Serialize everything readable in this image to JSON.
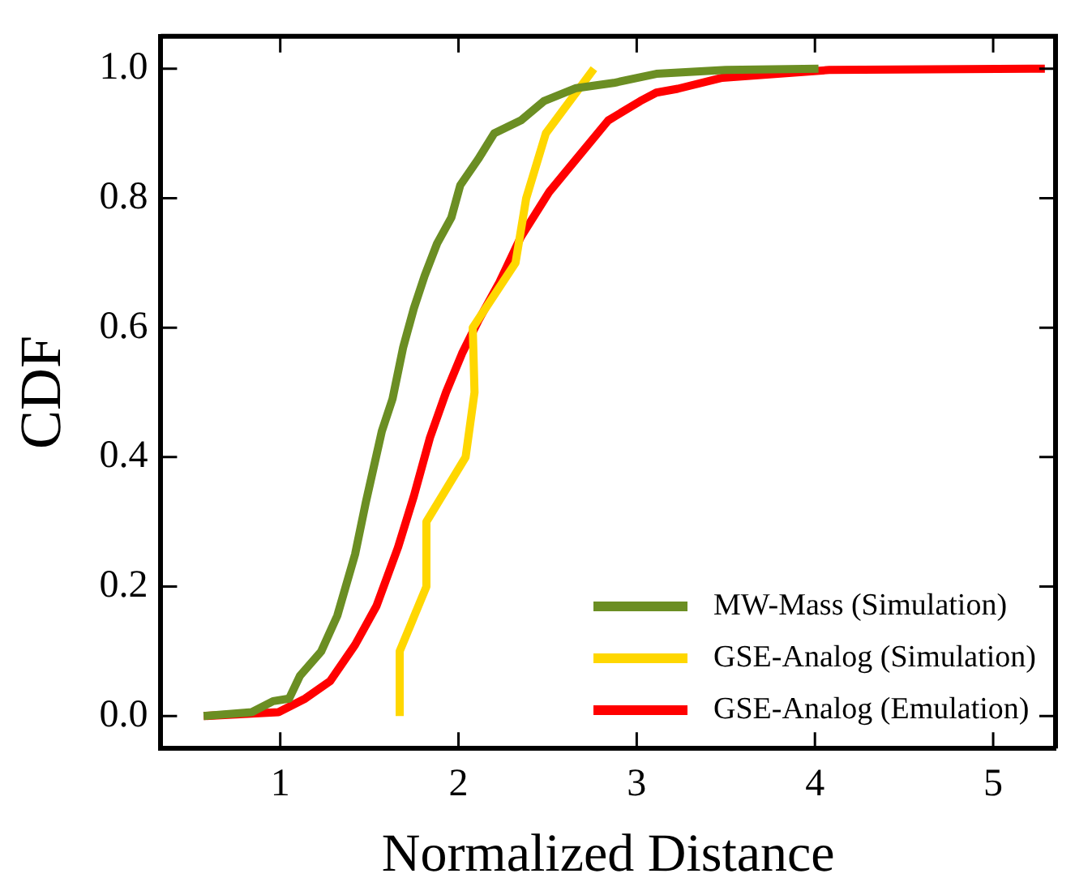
{
  "chart_data": {
    "type": "line",
    "xlabel": "Normalized Distance",
    "ylabel": "CDF",
    "xlim": [
      0.33,
      5.35
    ],
    "xticks": [
      1,
      2,
      3,
      4,
      5
    ],
    "ylim": [
      -0.05,
      1.05
    ],
    "yticks": [
      {
        "value": 0,
        "label": "0.0"
      },
      {
        "value": 0.2,
        "label": "0.2"
      },
      {
        "value": 0.4,
        "label": "0.4"
      },
      {
        "value": 0.6,
        "label": "0.6"
      },
      {
        "value": 0.8,
        "label": "0.8"
      },
      {
        "value": 1,
        "label": "1.0"
      }
    ],
    "grid": false,
    "legend": "bottom right",
    "marker": "none",
    "line_style": "solid",
    "series": [
      {
        "name": "MW-Mass (Simulation)",
        "color": "#6b8e23",
        "x": [
          0.57,
          0.84,
          0.96,
          1.05,
          1.11,
          1.23,
          1.32,
          1.42,
          1.48,
          1.57,
          1.63,
          1.69,
          1.75,
          1.81,
          1.88,
          1.96,
          2.01,
          2.11,
          2.2,
          2.35,
          2.48,
          2.66,
          2.87,
          3.11,
          3.5,
          4.02
        ],
        "values": [
          0,
          0.006,
          0.023,
          0.027,
          0.062,
          0.1,
          0.155,
          0.25,
          0.33,
          0.44,
          0.49,
          0.57,
          0.63,
          0.68,
          0.73,
          0.77,
          0.82,
          0.86,
          0.9,
          0.92,
          0.95,
          0.97,
          0.978,
          0.992,
          0.998,
          1
        ]
      },
      {
        "name": "GSE-Analog (Simulation)",
        "color": "#ffd700",
        "x": [
          1.67,
          1.67,
          1.82,
          1.82,
          2.04,
          2.09,
          2.08,
          2.32,
          2.38,
          2.49,
          2.76
        ],
        "values": [
          0,
          0.1,
          0.2,
          0.3,
          0.4,
          0.5,
          0.6,
          0.7,
          0.8,
          0.9,
          1
        ]
      },
      {
        "name": "GSE-Analog (Emulation)",
        "color": "#ff0000",
        "x": [
          0.57,
          0.99,
          1.14,
          1.28,
          1.42,
          1.54,
          1.66,
          1.75,
          1.84,
          1.93,
          2.02,
          2.11,
          2.23,
          2.35,
          2.51,
          2.66,
          2.84,
          3.02,
          3.11,
          3.23,
          3.48,
          4.08,
          5.29
        ],
        "values": [
          0,
          0.006,
          0.027,
          0.054,
          0.11,
          0.17,
          0.26,
          0.34,
          0.43,
          0.5,
          0.56,
          0.61,
          0.67,
          0.74,
          0.81,
          0.86,
          0.92,
          0.95,
          0.963,
          0.969,
          0.986,
          0.998,
          1
        ]
      }
    ]
  }
}
